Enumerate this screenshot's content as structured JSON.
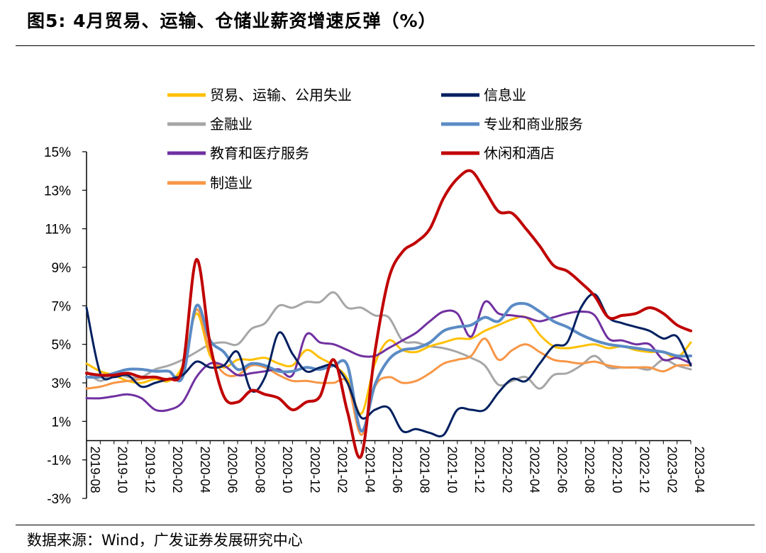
{
  "figure": {
    "title": "图5:  4月贸易、运输、仓储业薪资增速反弹（%）",
    "source": "数据来源：Wind，广发证券发展研究中心"
  },
  "chart_data": {
    "type": "line",
    "ylim": [
      -3,
      15
    ],
    "yticks": [
      "-3%",
      "-1%",
      "1%",
      "3%",
      "5%",
      "7%",
      "9%",
      "11%",
      "13%",
      "15%"
    ],
    "x": [
      "2019-08",
      "2019-09",
      "2019-10",
      "2019-11",
      "2019-12",
      "2020-01",
      "2020-02",
      "2020-03",
      "2020-04",
      "2020-05",
      "2020-06",
      "2020-07",
      "2020-08",
      "2020-09",
      "2020-10",
      "2020-11",
      "2020-12",
      "2021-01",
      "2021-02",
      "2021-03",
      "2021-04",
      "2021-05",
      "2021-06",
      "2021-07",
      "2021-08",
      "2021-09",
      "2021-10",
      "2021-11",
      "2021-12",
      "2022-01",
      "2022-02",
      "2022-03",
      "2022-04",
      "2022-05",
      "2022-06",
      "2022-07",
      "2022-08",
      "2022-09",
      "2022-10",
      "2022-11",
      "2022-12",
      "2023-01",
      "2023-02",
      "2023-03",
      "2023-04"
    ],
    "xtick_labels": [
      "2019-08",
      "2019-10",
      "2019-12",
      "2020-02",
      "2020-04",
      "2020-06",
      "2020-08",
      "2020-10",
      "2020-12",
      "2021-02",
      "2021-04",
      "2021-06",
      "2021-08",
      "2021-10",
      "2021-12",
      "2022-02",
      "2022-04",
      "2022-06",
      "2022-08",
      "2022-10",
      "2022-12",
      "2023-02",
      "2023-04"
    ],
    "grid": false,
    "legend_position": "top",
    "series": [
      {
        "name": "贸易、运输、公用失业",
        "color": "#FFC000",
        "width": 3,
        "values": [
          4.0,
          3.6,
          3.4,
          3.1,
          3.0,
          3.2,
          3.1,
          3.9,
          6.6,
          4.4,
          3.8,
          4.2,
          4.2,
          4.3,
          4.0,
          3.9,
          4.7,
          4.3,
          3.9,
          3.2,
          1.4,
          4.0,
          5.2,
          4.7,
          4.6,
          4.9,
          5.1,
          5.3,
          5.3,
          5.7,
          6.0,
          6.3,
          6.4,
          5.5,
          4.9,
          4.8,
          4.9,
          5.0,
          4.8,
          4.9,
          4.7,
          4.6,
          4.6,
          4.3,
          5.1
        ]
      },
      {
        "name": "信息业",
        "color": "#002060",
        "width": 3,
        "values": [
          6.9,
          3.5,
          3.3,
          3.4,
          2.8,
          3.0,
          3.2,
          3.4,
          4.1,
          3.8,
          3.9,
          4.6,
          2.6,
          3.3,
          5.6,
          4.5,
          3.6,
          3.8,
          3.9,
          3.0,
          1.2,
          1.6,
          1.7,
          0.5,
          0.6,
          0.4,
          0.3,
          1.6,
          1.6,
          1.6,
          2.5,
          3.2,
          3.1,
          4.0,
          4.9,
          5.1,
          6.9,
          7.6,
          6.4,
          6.1,
          5.9,
          5.7,
          5.3,
          5.4,
          3.9
        ]
      },
      {
        "name": "金融业",
        "color": "#A6A6A6",
        "width": 3,
        "values": [
          3.6,
          3.1,
          3.5,
          3.3,
          3.3,
          3.7,
          3.9,
          4.2,
          4.6,
          5.0,
          5.1,
          5.0,
          5.8,
          6.1,
          7.0,
          6.9,
          7.2,
          7.2,
          7.7,
          6.9,
          6.9,
          6.5,
          6.4,
          5.2,
          5.1,
          4.9,
          4.8,
          4.6,
          4.3,
          3.9,
          2.9,
          3.1,
          3.3,
          2.7,
          3.4,
          3.5,
          3.9,
          4.4,
          3.8,
          3.8,
          3.8,
          3.7,
          4.2,
          3.9,
          3.7
        ]
      },
      {
        "name": "专业和商业服务",
        "color": "#5B8BC5",
        "width": 4,
        "values": [
          3.3,
          3.3,
          3.5,
          3.7,
          3.7,
          3.6,
          3.6,
          3.3,
          7.0,
          5.2,
          4.6,
          3.7,
          4.0,
          3.9,
          3.6,
          3.6,
          3.8,
          3.7,
          3.9,
          3.9,
          0.5,
          2.9,
          4.2,
          4.7,
          4.8,
          5.1,
          5.7,
          5.9,
          6.0,
          6.4,
          6.2,
          7.0,
          7.1,
          6.7,
          6.2,
          5.9,
          5.5,
          5.2,
          5.0,
          4.9,
          4.8,
          4.7,
          4.6,
          4.4,
          4.4
        ]
      },
      {
        "name": "教育和医疗服务",
        "color": "#7030A0",
        "width": 3,
        "values": [
          2.2,
          2.2,
          2.3,
          2.4,
          2.2,
          1.6,
          1.6,
          2.0,
          3.3,
          4.0,
          3.9,
          3.4,
          3.5,
          3.6,
          3.7,
          3.4,
          5.5,
          5.1,
          5.0,
          4.7,
          4.4,
          4.4,
          4.8,
          5.2,
          5.6,
          6.2,
          6.7,
          6.6,
          5.4,
          7.2,
          6.6,
          6.5,
          6.4,
          6.2,
          6.4,
          6.6,
          6.7,
          6.5,
          5.3,
          5.2,
          5.0,
          5.0,
          4.2,
          4.3,
          4.0
        ]
      },
      {
        "name": "休闲和酒店",
        "color": "#C00000",
        "width": 4,
        "values": [
          3.5,
          3.4,
          3.4,
          3.5,
          3.3,
          3.3,
          3.2,
          3.8,
          9.4,
          5.0,
          2.3,
          2.0,
          2.6,
          2.4,
          2.2,
          1.6,
          2.0,
          2.3,
          4.2,
          1.5,
          -0.8,
          4.6,
          8.4,
          9.8,
          10.3,
          11.0,
          12.6,
          13.6,
          14.0,
          13.0,
          11.9,
          11.8,
          11.0,
          10.1,
          9.1,
          8.8,
          8.2,
          7.5,
          6.4,
          6.5,
          6.6,
          6.9,
          6.6,
          6.0,
          5.7
        ]
      },
      {
        "name": "制造业",
        "color": "#F79646",
        "width": 3,
        "values": [
          2.7,
          2.8,
          3.0,
          3.1,
          3.2,
          3.3,
          3.2,
          3.5,
          6.8,
          4.6,
          3.5,
          3.4,
          3.9,
          3.8,
          3.4,
          3.1,
          3.1,
          3.0,
          3.0,
          3.0,
          0.3,
          2.8,
          3.3,
          3.0,
          3.1,
          3.5,
          4.0,
          4.2,
          4.4,
          5.3,
          4.2,
          4.7,
          5.0,
          4.6,
          4.2,
          4.1,
          4.0,
          4.1,
          3.9,
          3.8,
          3.8,
          3.8,
          3.6,
          3.9,
          3.9
        ]
      }
    ]
  }
}
